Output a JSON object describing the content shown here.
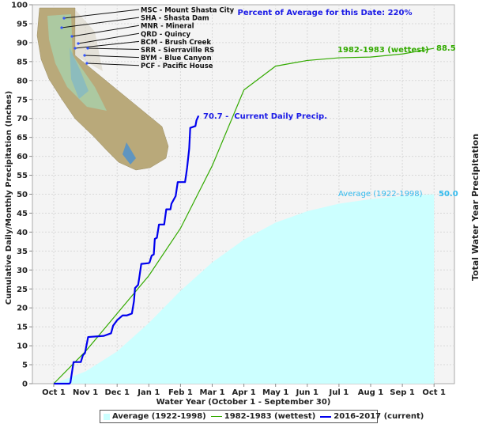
{
  "chart_data": {
    "type": "line",
    "title": "",
    "annotation_top": "Percent of Average for this Date: 220%",
    "xlabel": "Water Year (October 1 - September 30)",
    "ylabel": "Cumulative Daily/Monthly Precipitation (Inches)",
    "ylabel_right": "Total Water Year Precipitation",
    "ylim": [
      0,
      100
    ],
    "yticks": [
      0,
      5,
      10,
      15,
      20,
      25,
      30,
      35,
      40,
      45,
      50,
      55,
      60,
      65,
      70,
      75,
      80,
      85,
      90,
      95,
      100
    ],
    "x_ticks": [
      "Oct 1",
      "Nov 1",
      "Dec 1",
      "Jan 1",
      "Feb 1",
      "Mar 1",
      "Apr 1",
      "May 1",
      "Jun 1",
      "Jul 1",
      "Aug 1",
      "Sep 1",
      "Oct 1"
    ],
    "grid": true,
    "series": [
      {
        "name": "Average (1922-1998)",
        "kind": "area",
        "color": "#ccffff",
        "label_color": "#33bbee",
        "end_label": "50.0",
        "inline_label": "Average (1922-1998)",
        "monthly_values": [
          0,
          3.2,
          8.5,
          16,
          24.5,
          32,
          38,
          42.5,
          45.5,
          47.5,
          48.7,
          49.5,
          50.0
        ]
      },
      {
        "name": "1982-1983 (wettest)",
        "kind": "line",
        "color": "#33aa00",
        "end_label": "88.5",
        "inline_label": "1982-1983 (wettest)",
        "monthly_values": [
          0,
          8.5,
          18.5,
          28.5,
          41,
          57.5,
          77.5,
          83.8,
          85.3,
          86,
          86.2,
          87,
          88.5
        ]
      },
      {
        "name": "2016-2017 (current)",
        "kind": "line",
        "color": "#0000ee",
        "end_label": "70.7 -  Current Daily Precip.",
        "current_value": 70.7,
        "points_day_value": [
          [
            0,
            0
          ],
          [
            15,
            0
          ],
          [
            16,
            0.3
          ],
          [
            19,
            5.7
          ],
          [
            26,
            5.7
          ],
          [
            28,
            7.5
          ],
          [
            30,
            8.1
          ],
          [
            33,
            12.3
          ],
          [
            48,
            12.6
          ],
          [
            55,
            13.3
          ],
          [
            57,
            15.3
          ],
          [
            61,
            16.8
          ],
          [
            66,
            18
          ],
          [
            70,
            18
          ],
          [
            75,
            18.5
          ],
          [
            77,
            21.8
          ],
          [
            78,
            25.2
          ],
          [
            81,
            26.1
          ],
          [
            82,
            27.8
          ],
          [
            84,
            31.6
          ],
          [
            91,
            31.8
          ],
          [
            92,
            32
          ],
          [
            94,
            33.8
          ],
          [
            96,
            34.1
          ],
          [
            97,
            38.2
          ],
          [
            99,
            38.5
          ],
          [
            101,
            42
          ],
          [
            106,
            42
          ],
          [
            108,
            46
          ],
          [
            112,
            46
          ],
          [
            113,
            47.5
          ],
          [
            117,
            49.5
          ],
          [
            119,
            53.2
          ],
          [
            126,
            53.2
          ],
          [
            127,
            55
          ],
          [
            128,
            57
          ],
          [
            130,
            62
          ],
          [
            131,
            67.5
          ],
          [
            136,
            68
          ],
          [
            137,
            69.5
          ],
          [
            139,
            70.7
          ]
        ]
      }
    ],
    "legend_position": "bottom"
  },
  "map_inset": {
    "stations": [
      "MSC - Mount Shasta City",
      "SHA - Shasta Dam",
      "MNR - Mineral",
      "QRD - Quincy",
      "BCM - Brush Creek",
      "SRR - Sierraville RS",
      "BYM - Blue Canyon",
      "PCF - Pacific House"
    ]
  },
  "legend": {
    "items": [
      "Average (1922-1998)",
      "1982-1983 (wettest)",
      "2016-2017 (current)"
    ]
  }
}
